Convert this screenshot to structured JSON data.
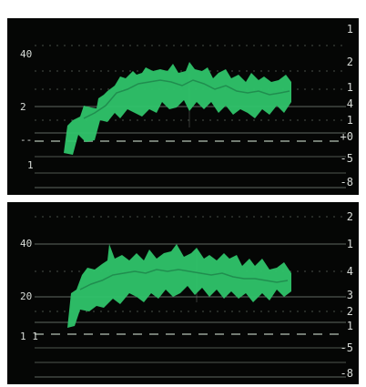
{
  "colors": {
    "background": "#050605",
    "trace": "#3ddc7a",
    "trace_dark": "#1f8a4c",
    "graticule": "#7f8a80"
  },
  "scopes": [
    {
      "name": "top",
      "left_labels": {
        "top": "40",
        "middle": "2",
        "lower": "--",
        "bottom": "1"
      },
      "right_labels": {
        "r1": "1",
        "r2": "2",
        "r3": "1",
        "r4": "4",
        "r5": "1",
        "r6": "+0",
        "r7": "-5",
        "r8": "-8"
      }
    },
    {
      "name": "bottom",
      "left_labels": {
        "top": "40",
        "middle": "20",
        "lower": "1 1"
      },
      "right_labels": {
        "r1": "2",
        "r2": "1",
        "r3": "4",
        "r4": "3",
        "r5": "2",
        "r6": "1",
        "r7": "-5",
        "r8": "-8"
      }
    }
  ]
}
